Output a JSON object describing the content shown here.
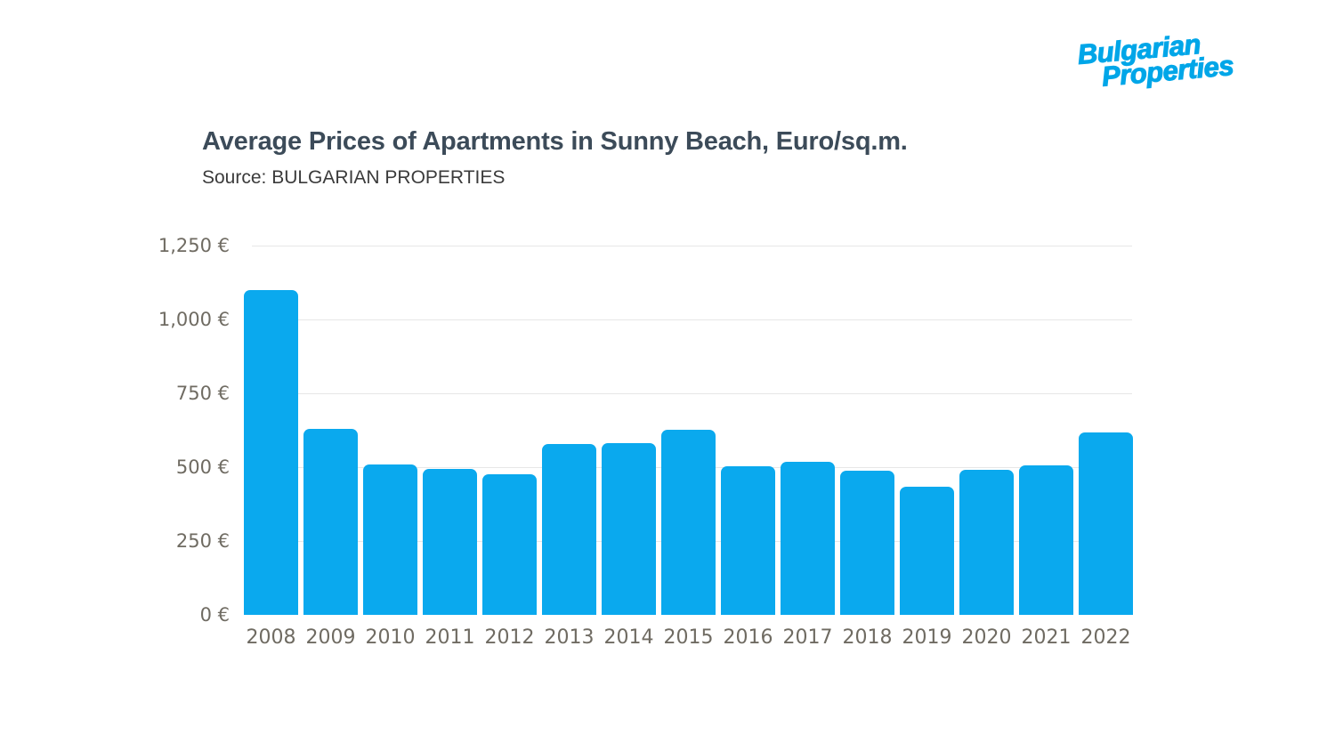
{
  "logo": {
    "line1": "Bulgarian",
    "line2": "Properties",
    "color": "#00a6e8"
  },
  "header": {
    "title": "Average Prices of Apartments in Sunny Beach, Euro/sq.m.",
    "subtitle": "Source: BULGARIAN PROPERTIES",
    "title_color": "#3c4b59",
    "subtitle_color": "#3b3b3b"
  },
  "chart_data": {
    "type": "bar",
    "title": "Average Prices of Apartments in Sunny Beach, Euro/sq.m.",
    "source": "Source: BULGARIAN PROPERTIES",
    "unit": "€",
    "categories": [
      "2008",
      "2009",
      "2010",
      "2011",
      "2012",
      "2013",
      "2014",
      "2015",
      "2016",
      "2017",
      "2018",
      "2019",
      "2020",
      "2021",
      "2022"
    ],
    "values": [
      1100,
      630,
      508,
      494,
      477,
      577,
      582,
      627,
      503,
      518,
      488,
      434,
      490,
      505,
      618
    ],
    "ylim": [
      0,
      1250
    ],
    "yticks": [
      {
        "value": 1250,
        "label": "1,250 €"
      },
      {
        "value": 1000,
        "label": "1,000 €"
      },
      {
        "value": 750,
        "label": "750 €"
      },
      {
        "value": 500,
        "label": "500 €"
      },
      {
        "value": 250,
        "label": "250 €"
      },
      {
        "value": 0,
        "label": "0 €"
      }
    ],
    "grid": "horizontal",
    "legend_position": "none",
    "bar_color": "#0aa9ee",
    "grid_color": "#e7e7e7",
    "tick_color": "#6f6b62"
  }
}
